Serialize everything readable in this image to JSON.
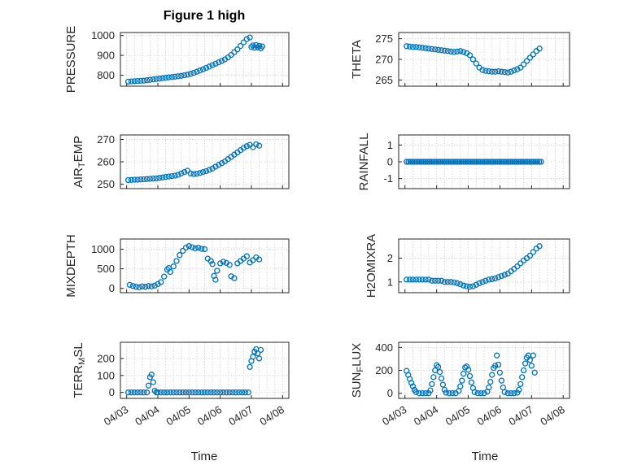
{
  "figure": {
    "title": "Figure 1 high",
    "xlabel": "Time",
    "x_tick_labels": [
      "04/03",
      "04/04",
      "04/05",
      "04/06",
      "04/07",
      "04/08"
    ],
    "xticks": [
      3,
      4,
      5,
      6,
      7,
      8
    ],
    "xlim": [
      2.8,
      8.2
    ],
    "marker_color": "#0072BD",
    "grid_color": "#c8c8c8",
    "axis_color": "#262626"
  },
  "chart_data": [
    {
      "id": "pressure",
      "type": "scatter",
      "ylabel": "PRESSURE",
      "ylabel_parts": [
        {
          "t": "PRESSURE"
        }
      ],
      "yticks": [
        800,
        900,
        1000
      ],
      "ylim": [
        745,
        1015
      ],
      "x": [
        3.05,
        3.15,
        3.25,
        3.35,
        3.45,
        3.55,
        3.65,
        3.75,
        3.85,
        3.95,
        4.05,
        4.15,
        4.25,
        4.35,
        4.45,
        4.55,
        4.65,
        4.75,
        4.85,
        4.95,
        5.05,
        5.15,
        5.25,
        5.35,
        5.45,
        5.55,
        5.65,
        5.75,
        5.85,
        5.95,
        6.05,
        6.15,
        6.25,
        6.35,
        6.45,
        6.55,
        6.65,
        6.75,
        6.85,
        6.95,
        7.0,
        7.05,
        7.1,
        7.15,
        7.2,
        7.25,
        7.3,
        7.35
      ],
      "y": [
        768,
        769,
        770,
        771,
        772,
        773,
        775,
        777,
        779,
        781,
        783,
        785,
        787,
        789,
        791,
        793,
        795,
        797,
        800,
        803,
        807,
        812,
        818,
        824,
        830,
        837,
        844,
        851,
        858,
        865,
        872,
        880,
        890,
        902,
        916,
        930,
        947,
        965,
        982,
        990,
        942,
        950,
        938,
        952,
        940,
        948,
        935,
        945
      ]
    },
    {
      "id": "theta",
      "type": "scatter",
      "ylabel": "THETA",
      "ylabel_parts": [
        {
          "t": "THETA"
        }
      ],
      "yticks": [
        265,
        270,
        275
      ],
      "ylim": [
        263.5,
        276.5
      ],
      "x": [
        3.05,
        3.15,
        3.25,
        3.35,
        3.45,
        3.55,
        3.65,
        3.75,
        3.85,
        3.95,
        4.05,
        4.15,
        4.25,
        4.35,
        4.45,
        4.55,
        4.65,
        4.75,
        4.85,
        4.95,
        5.05,
        5.15,
        5.25,
        5.35,
        5.45,
        5.55,
        5.65,
        5.75,
        5.85,
        5.95,
        6.05,
        6.15,
        6.25,
        6.35,
        6.45,
        6.55,
        6.65,
        6.75,
        6.85,
        6.95,
        7.05,
        7.15,
        7.25
      ],
      "y": [
        273.2,
        273.1,
        273.0,
        273.0,
        272.9,
        272.8,
        272.7,
        272.6,
        272.5,
        272.4,
        272.3,
        272.2,
        272.1,
        272.0,
        271.9,
        271.8,
        271.9,
        272.0,
        271.8,
        271.5,
        271.0,
        270.0,
        269.0,
        268.0,
        267.4,
        267.2,
        267.1,
        267.0,
        267.0,
        267.1,
        267.0,
        266.9,
        266.8,
        267.0,
        267.3,
        267.6,
        268.0,
        268.8,
        269.6,
        270.4,
        271.2,
        272.0,
        272.6
      ]
    },
    {
      "id": "airtemp",
      "type": "scatter",
      "ylabel": "AIR_TEMP",
      "ylabel_parts": [
        {
          "t": "AIR"
        },
        {
          "t": "T",
          "sub": true
        },
        {
          "t": "EMP"
        }
      ],
      "yticks": [
        250,
        260,
        270
      ],
      "ylim": [
        248,
        272
      ],
      "x": [
        3.05,
        3.15,
        3.25,
        3.35,
        3.45,
        3.55,
        3.65,
        3.75,
        3.85,
        3.95,
        4.05,
        4.15,
        4.25,
        4.35,
        4.45,
        4.55,
        4.65,
        4.75,
        4.85,
        4.95,
        5.05,
        5.15,
        5.25,
        5.35,
        5.45,
        5.55,
        5.65,
        5.75,
        5.85,
        5.95,
        6.05,
        6.15,
        6.25,
        6.35,
        6.45,
        6.55,
        6.65,
        6.75,
        6.85,
        6.95,
        7.05,
        7.15,
        7.25
      ],
      "y": [
        251.8,
        251.9,
        252.0,
        252.0,
        252.1,
        252.2,
        252.3,
        252.4,
        252.5,
        252.6,
        252.8,
        253.0,
        253.2,
        253.4,
        253.6,
        253.8,
        254.2,
        254.8,
        255.4,
        256.0,
        254.8,
        254.5,
        254.7,
        255.0,
        255.4,
        255.8,
        256.4,
        257.0,
        257.8,
        258.6,
        259.4,
        260.2,
        261.2,
        262.2,
        263.2,
        264.2,
        265.2,
        266.2,
        267.0,
        267.6,
        266.5,
        267.8,
        267.2
      ]
    },
    {
      "id": "rainfall",
      "type": "scatter",
      "ylabel": "RAINFALL",
      "ylabel_parts": [
        {
          "t": "RAINFALL"
        }
      ],
      "yticks": [
        -1,
        0,
        1
      ],
      "ylim": [
        -1.6,
        1.6
      ],
      "x_linspace": [
        3.05,
        7.3,
        72
      ],
      "y_const": 0
    },
    {
      "id": "mixdepth",
      "type": "scatter",
      "ylabel": "MIXDEPTH",
      "ylabel_parts": [
        {
          "t": "MIXDEPTH"
        }
      ],
      "yticks": [
        0,
        500,
        1000
      ],
      "ylim": [
        -110,
        1260
      ],
      "x": [
        3.1,
        3.2,
        3.3,
        3.4,
        3.5,
        3.6,
        3.7,
        3.8,
        3.9,
        4.0,
        4.1,
        4.2,
        4.3,
        4.35,
        4.4,
        4.5,
        4.6,
        4.7,
        4.8,
        4.9,
        5.0,
        5.1,
        5.2,
        5.3,
        5.4,
        5.5,
        5.6,
        5.7,
        5.75,
        5.8,
        5.85,
        5.9,
        6.0,
        6.1,
        6.2,
        6.3,
        6.35,
        6.45,
        6.55,
        6.65,
        6.75,
        6.85,
        6.95,
        7.05,
        7.15,
        7.25
      ],
      "y": [
        90,
        60,
        40,
        30,
        50,
        40,
        60,
        50,
        70,
        110,
        160,
        300,
        480,
        520,
        420,
        560,
        700,
        850,
        960,
        1040,
        1080,
        1050,
        1020,
        1040,
        1010,
        1000,
        760,
        700,
        620,
        320,
        220,
        450,
        640,
        680,
        650,
        600,
        310,
        260,
        640,
        700,
        760,
        820,
        660,
        720,
        790,
        740
      ]
    },
    {
      "id": "h2omixra",
      "type": "scatter",
      "ylabel": "H2OMIXRA",
      "ylabel_parts": [
        {
          "t": "H2OMIXRA"
        }
      ],
      "yticks": [
        1,
        2
      ],
      "ylim": [
        0.55,
        2.8
      ],
      "x": [
        3.05,
        3.15,
        3.25,
        3.35,
        3.45,
        3.55,
        3.65,
        3.75,
        3.85,
        3.95,
        4.05,
        4.15,
        4.25,
        4.35,
        4.45,
        4.55,
        4.65,
        4.75,
        4.85,
        4.95,
        5.05,
        5.15,
        5.25,
        5.35,
        5.45,
        5.55,
        5.65,
        5.75,
        5.85,
        5.95,
        6.05,
        6.15,
        6.25,
        6.35,
        6.45,
        6.55,
        6.65,
        6.75,
        6.85,
        6.95,
        7.05,
        7.15,
        7.25
      ],
      "y": [
        1.1,
        1.1,
        1.1,
        1.1,
        1.1,
        1.1,
        1.1,
        1.1,
        1.05,
        1.05,
        1.05,
        1.05,
        1.0,
        1.0,
        1.0,
        0.98,
        0.95,
        0.9,
        0.85,
        0.82,
        0.8,
        0.82,
        0.88,
        0.95,
        1.0,
        1.05,
        1.1,
        1.12,
        1.15,
        1.2,
        1.25,
        1.3,
        1.35,
        1.45,
        1.55,
        1.65,
        1.78,
        1.9,
        2.0,
        2.1,
        2.25,
        2.4,
        2.5
      ]
    },
    {
      "id": "terrmsl",
      "type": "scatter",
      "ylabel": "TERR_MSL",
      "ylabel_parts": [
        {
          "t": "TERR"
        },
        {
          "t": "M",
          "sub": true
        },
        {
          "t": "SL"
        }
      ],
      "yticks": [
        0,
        100,
        200
      ],
      "ylim": [
        -35,
        295
      ],
      "x": [
        3.05,
        3.15,
        3.25,
        3.35,
        3.45,
        3.55,
        3.65,
        3.7,
        3.75,
        3.8,
        3.85,
        3.9,
        3.95,
        4.0,
        4.1,
        4.2,
        4.3,
        4.4,
        4.5,
        4.6,
        4.7,
        4.8,
        4.9,
        5.0,
        5.1,
        5.2,
        5.3,
        5.4,
        5.5,
        5.6,
        5.7,
        5.8,
        5.9,
        6.0,
        6.1,
        6.2,
        6.3,
        6.4,
        6.5,
        6.6,
        6.7,
        6.8,
        6.9,
        6.95,
        7.0,
        7.05,
        7.1,
        7.15,
        7.2,
        7.25,
        7.3
      ],
      "y": [
        0,
        0,
        0,
        0,
        0,
        0,
        0,
        40,
        90,
        105,
        60,
        10,
        0,
        0,
        0,
        0,
        0,
        0,
        0,
        0,
        0,
        0,
        0,
        0,
        0,
        0,
        0,
        0,
        0,
        0,
        0,
        0,
        0,
        0,
        0,
        0,
        0,
        0,
        0,
        0,
        0,
        0,
        0,
        150,
        185,
        210,
        240,
        255,
        230,
        200,
        250
      ]
    },
    {
      "id": "sunflux",
      "type": "scatter",
      "ylabel": "SUN_FLUX",
      "ylabel_parts": [
        {
          "t": "SUN"
        },
        {
          "t": "F",
          "sub": true
        },
        {
          "t": "LUX"
        }
      ],
      "yticks": [
        0,
        200,
        400
      ],
      "ylim": [
        -45,
        445
      ],
      "x": [
        3.05,
        3.1,
        3.15,
        3.2,
        3.25,
        3.3,
        3.35,
        3.45,
        3.55,
        3.65,
        3.75,
        3.8,
        3.85,
        3.9,
        3.95,
        4.0,
        4.05,
        4.1,
        4.15,
        4.2,
        4.25,
        4.3,
        4.4,
        4.5,
        4.6,
        4.7,
        4.75,
        4.8,
        4.85,
        4.9,
        4.95,
        5.0,
        5.05,
        5.1,
        5.15,
        5.2,
        5.3,
        5.4,
        5.5,
        5.6,
        5.65,
        5.7,
        5.75,
        5.8,
        5.85,
        5.9,
        5.95,
        6.0,
        6.05,
        6.1,
        6.15,
        6.25,
        6.35,
        6.45,
        6.55,
        6.6,
        6.65,
        6.7,
        6.75,
        6.8,
        6.85,
        6.9,
        6.95,
        7.0,
        7.05,
        7.1
      ],
      "y": [
        195,
        160,
        125,
        90,
        60,
        30,
        10,
        0,
        0,
        0,
        0,
        25,
        80,
        140,
        200,
        245,
        230,
        185,
        130,
        75,
        30,
        5,
        0,
        0,
        0,
        20,
        60,
        110,
        170,
        225,
        235,
        205,
        150,
        95,
        45,
        10,
        0,
        0,
        0,
        15,
        50,
        100,
        160,
        220,
        240,
        330,
        250,
        180,
        110,
        50,
        10,
        0,
        0,
        0,
        5,
        30,
        80,
        140,
        200,
        260,
        310,
        330,
        290,
        240,
        330,
        180
      ]
    }
  ]
}
